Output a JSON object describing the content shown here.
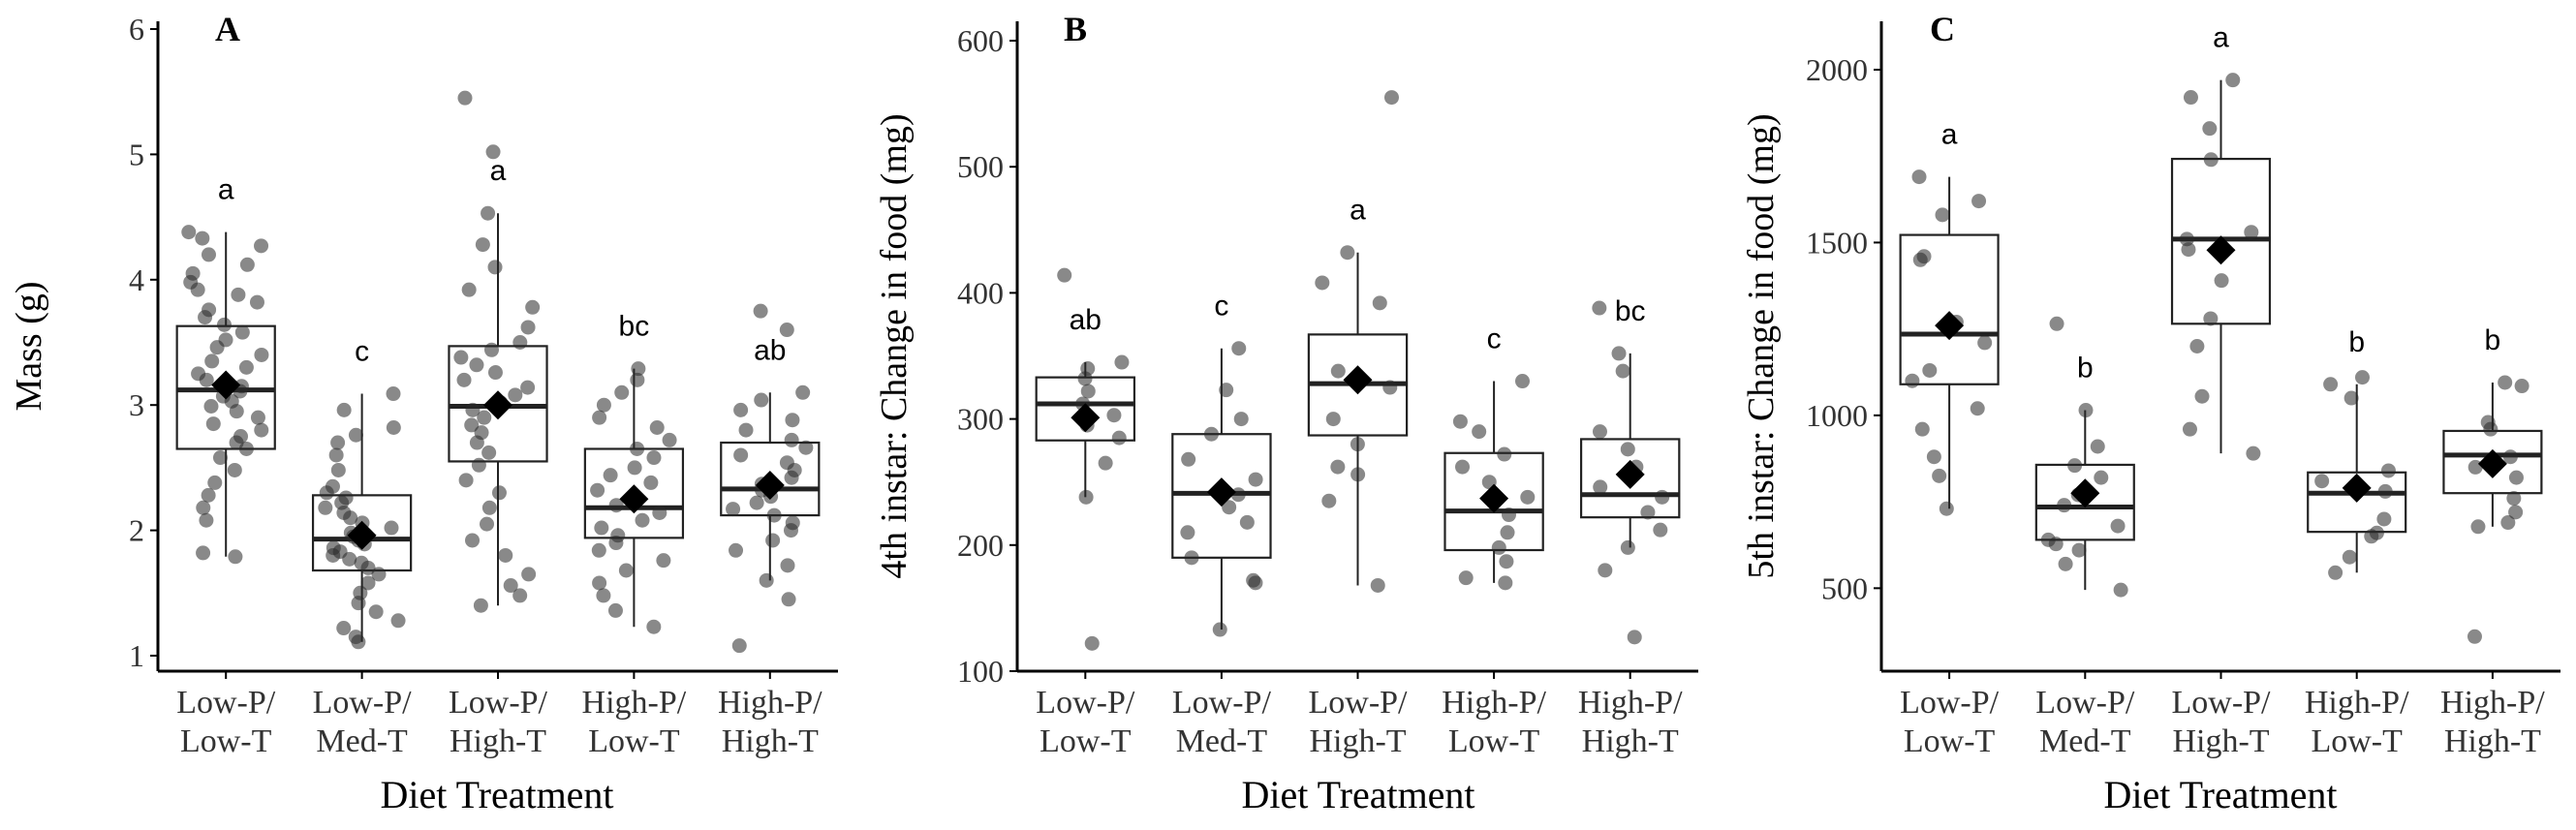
{
  "chart_data": [
    {
      "type": "box",
      "panel": "A",
      "xlabel": "Diet Treatment",
      "ylabel": "Mass (g)",
      "ylim": [
        1,
        6
      ],
      "yticks": [
        1,
        2,
        3,
        4,
        5,
        6
      ],
      "categories": [
        [
          "Low-P/",
          "Low-T"
        ],
        [
          "Low-P/",
          "Med-T"
        ],
        [
          "Low-P/",
          "High-T"
        ],
        [
          "High-P/",
          "Low-T"
        ],
        [
          "High-P/",
          "High-T"
        ]
      ],
      "boxes": [
        {
          "q1": 2.65,
          "median": 3.12,
          "q3": 3.63,
          "whisker_low": 1.79,
          "whisker_high": 4.38,
          "mean": 3.16,
          "letter": "a"
        },
        {
          "q1": 1.68,
          "median": 1.93,
          "q3": 2.28,
          "whisker_low": 1.11,
          "whisker_high": 3.09,
          "mean": 1.96,
          "letter": "c"
        },
        {
          "q1": 2.55,
          "median": 2.99,
          "q3": 3.47,
          "whisker_low": 1.4,
          "whisker_high": 4.53,
          "mean": 3.0,
          "letter": "a"
        },
        {
          "q1": 1.94,
          "median": 2.18,
          "q3": 2.65,
          "whisker_low": 1.23,
          "whisker_high": 3.29,
          "mean": 2.25,
          "letter": "bc"
        },
        {
          "q1": 2.12,
          "median": 2.33,
          "q3": 2.7,
          "whisker_low": 1.6,
          "whisker_high": 3.1,
          "mean": 2.36,
          "letter": "ab"
        }
      ],
      "points": [
        [
          4.38,
          4.33,
          4.27,
          4.2,
          4.12,
          4.05,
          3.98,
          3.92,
          3.88,
          3.82,
          3.76,
          3.7,
          3.64,
          3.58,
          3.52,
          3.46,
          3.4,
          3.35,
          3.3,
          3.25,
          3.2,
          3.15,
          3.11,
          3.07,
          3.03,
          2.99,
          2.95,
          2.9,
          2.85,
          2.8,
          2.75,
          2.7,
          2.65,
          2.58,
          2.48,
          2.38,
          2.28,
          2.18,
          2.08,
          1.82,
          1.79
        ],
        [
          3.09,
          2.96,
          2.82,
          2.76,
          2.7,
          2.6,
          2.48,
          2.35,
          2.3,
          2.26,
          2.22,
          2.18,
          2.14,
          2.1,
          2.06,
          2.02,
          1.98,
          1.95,
          1.92,
          1.89,
          1.86,
          1.83,
          1.8,
          1.77,
          1.74,
          1.7,
          1.65,
          1.58,
          1.5,
          1.42,
          1.35,
          1.28,
          1.22,
          1.15,
          1.11
        ],
        [
          5.45,
          5.02,
          4.53,
          4.28,
          4.1,
          3.92,
          3.78,
          3.62,
          3.5,
          3.44,
          3.38,
          3.32,
          3.26,
          3.2,
          3.14,
          3.08,
          3.02,
          2.96,
          2.9,
          2.84,
          2.78,
          2.7,
          2.62,
          2.52,
          2.4,
          2.3,
          2.18,
          2.05,
          1.92,
          1.8,
          1.65,
          1.56,
          1.48,
          1.4
        ],
        [
          3.29,
          3.2,
          3.1,
          3.0,
          2.9,
          2.82,
          2.72,
          2.65,
          2.58,
          2.5,
          2.44,
          2.38,
          2.32,
          2.26,
          2.2,
          2.14,
          2.08,
          2.02,
          1.96,
          1.9,
          1.84,
          1.76,
          1.68,
          1.58,
          1.48,
          1.36,
          1.23
        ],
        [
          3.75,
          3.6,
          3.1,
          3.04,
          2.96,
          2.88,
          2.8,
          2.72,
          2.66,
          2.6,
          2.54,
          2.48,
          2.42,
          2.37,
          2.32,
          2.27,
          2.22,
          2.17,
          2.12,
          2.06,
          2.0,
          1.92,
          1.84,
          1.72,
          1.6,
          1.45,
          1.08
        ]
      ]
    },
    {
      "type": "box",
      "panel": "B",
      "xlabel": "Diet Treatment",
      "ylabel": "4th instar: Change in food (mg)",
      "ylim": [
        100,
        600
      ],
      "yticks": [
        100,
        200,
        300,
        400,
        500,
        600
      ],
      "categories": [
        [
          "Low-P/",
          "Low-T"
        ],
        [
          "Low-P/",
          "Med-T"
        ],
        [
          "Low-P/",
          "High-T"
        ],
        [
          "High-P/",
          "Low-T"
        ],
        [
          "High-P/",
          "High-T"
        ]
      ],
      "boxes": [
        {
          "q1": 283,
          "median": 312,
          "q3": 333,
          "whisker_low": 238,
          "whisker_high": 345,
          "mean": 301,
          "letter": "ab"
        },
        {
          "q1": 190,
          "median": 241,
          "q3": 288,
          "whisker_low": 133,
          "whisker_high": 356,
          "mean": 242,
          "letter": "c"
        },
        {
          "q1": 287,
          "median": 328,
          "q3": 367,
          "whisker_low": 168,
          "whisker_high": 432,
          "mean": 331,
          "letter": "a"
        },
        {
          "q1": 196,
          "median": 227,
          "q3": 273,
          "whisker_low": 170,
          "whisker_high": 330,
          "mean": 237,
          "letter": "c"
        },
        {
          "q1": 222,
          "median": 240,
          "q3": 284,
          "whisker_low": 198,
          "whisker_high": 352,
          "mean": 256,
          "letter": "bc"
        }
      ],
      "points": [
        [
          414,
          345,
          340,
          332,
          322,
          312,
          303,
          295,
          285,
          265,
          238,
          122
        ],
        [
          356,
          323,
          300,
          288,
          268,
          252,
          240,
          230,
          218,
          210,
          190,
          172,
          170,
          133
        ],
        [
          555,
          432,
          408,
          392,
          338,
          325,
          300,
          280,
          262,
          256,
          235,
          168
        ],
        [
          330,
          298,
          290,
          272,
          262,
          250,
          238,
          224,
          210,
          198,
          187,
          174,
          170
        ],
        [
          388,
          352,
          338,
          290,
          276,
          262,
          246,
          238,
          226,
          212,
          198,
          180,
          127
        ]
      ]
    },
    {
      "type": "box",
      "panel": "C",
      "xlabel": "Diet Treatment",
      "ylabel": "5th instar: Change in food (mg)",
      "ylim": [
        260,
        2140
      ],
      "yticks": [
        500,
        1000,
        1500,
        2000
      ],
      "categories": [
        [
          "Low-P/",
          "Low-T"
        ],
        [
          "Low-P/",
          "Med-T"
        ],
        [
          "Low-P/",
          "High-T"
        ],
        [
          "High-P/",
          "Low-T"
        ],
        [
          "High-P/",
          "High-T"
        ]
      ],
      "boxes": [
        {
          "q1": 1090,
          "median": 1235,
          "q3": 1522,
          "whisker_low": 730,
          "whisker_high": 1690,
          "mean": 1260,
          "letter": "a"
        },
        {
          "q1": 640,
          "median": 735,
          "q3": 857,
          "whisker_low": 495,
          "whisker_high": 1015,
          "mean": 775,
          "letter": "b"
        },
        {
          "q1": 1265,
          "median": 1510,
          "q3": 1742,
          "whisker_low": 890,
          "whisker_high": 1970,
          "mean": 1478,
          "letter": "a"
        },
        {
          "q1": 663,
          "median": 775,
          "q3": 835,
          "whisker_low": 545,
          "whisker_high": 1090,
          "mean": 790,
          "letter": "b"
        },
        {
          "q1": 775,
          "median": 885,
          "q3": 955,
          "whisker_low": 678,
          "whisker_high": 1095,
          "mean": 860,
          "letter": "b"
        }
      ],
      "points": [
        [
          1690,
          1620,
          1580,
          1460,
          1450,
          1270,
          1210,
          1130,
          1100,
          1020,
          960,
          880,
          825,
          730
        ],
        [
          1265,
          1015,
          910,
          855,
          820,
          770,
          740,
          680,
          640,
          628,
          610,
          570,
          495
        ],
        [
          1970,
          1920,
          1830,
          1740,
          1530,
          1510,
          1480,
          1390,
          1280,
          1200,
          1055,
          960,
          890
        ],
        [
          1110,
          1090,
          1050,
          840,
          810,
          780,
          700,
          660,
          650,
          590,
          545
        ],
        [
          1095,
          1085,
          980,
          960,
          880,
          850,
          820,
          760,
          720,
          690,
          678,
          360
        ]
      ]
    }
  ]
}
